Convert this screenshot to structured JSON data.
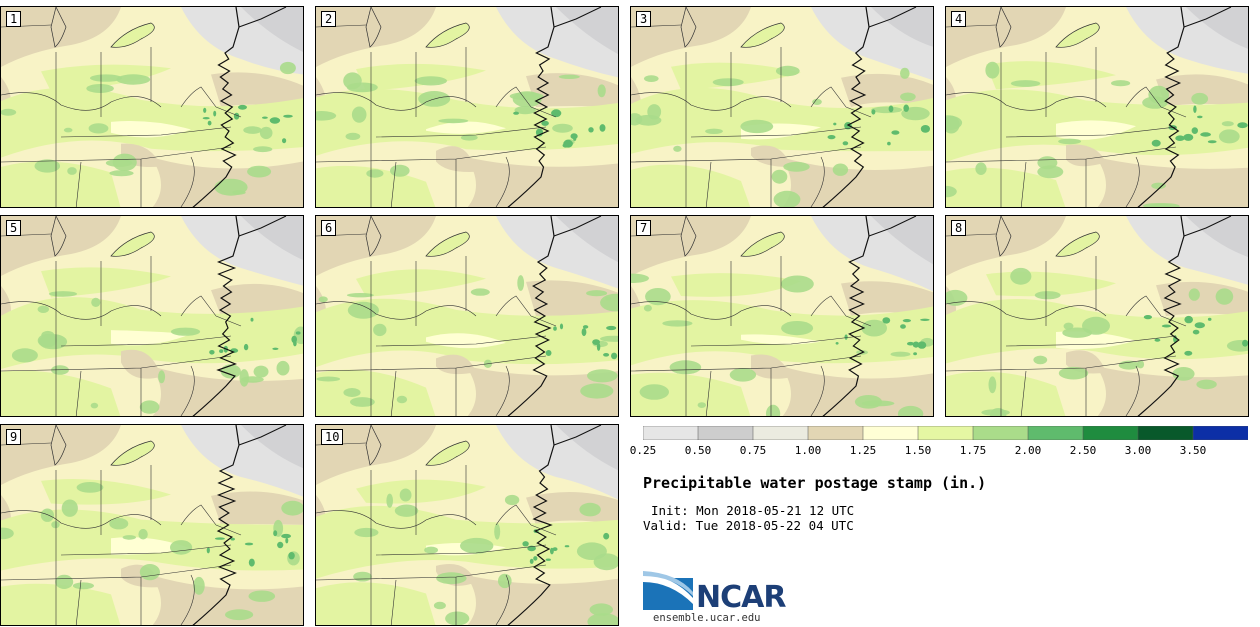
{
  "title": "Precipitable water postage stamp (in.)",
  "init_text": "Init: Mon 2018-05-21 12 UTC",
  "valid_text": "Valid: Tue 2018-05-22 04 UTC",
  "members": [
    "1",
    "2",
    "3",
    "4",
    "5",
    "6",
    "7",
    "8",
    "9",
    "10"
  ],
  "colorbar": {
    "labels": [
      "0.25",
      "0.50",
      "0.75",
      "1.00",
      "1.25",
      "1.50",
      "1.75",
      "2.00",
      "2.50",
      "3.00",
      "3.50"
    ],
    "colors": [
      "#e6e6e6",
      "#cdcdcd",
      "#ebebe0",
      "#e2d6b4",
      "#ffffd5",
      "#e5f7a3",
      "#aadc8a",
      "#5fbb6d",
      "#1f8c3f",
      "#08592b",
      "#0c2fa6"
    ]
  },
  "map_colors": {
    "dry_gray": "#d2d2d4",
    "light_gray": "#e2e2e2",
    "tan": "#e2d6b4",
    "cream": "#f8f3c6",
    "yellow": "#ffffd3",
    "light_green": "#e3f4a2",
    "green": "#aadb8b",
    "dark_green": "#5fbb6d"
  },
  "logo": {
    "name": "NCAR",
    "url": "ensemble.ucar.edu"
  }
}
